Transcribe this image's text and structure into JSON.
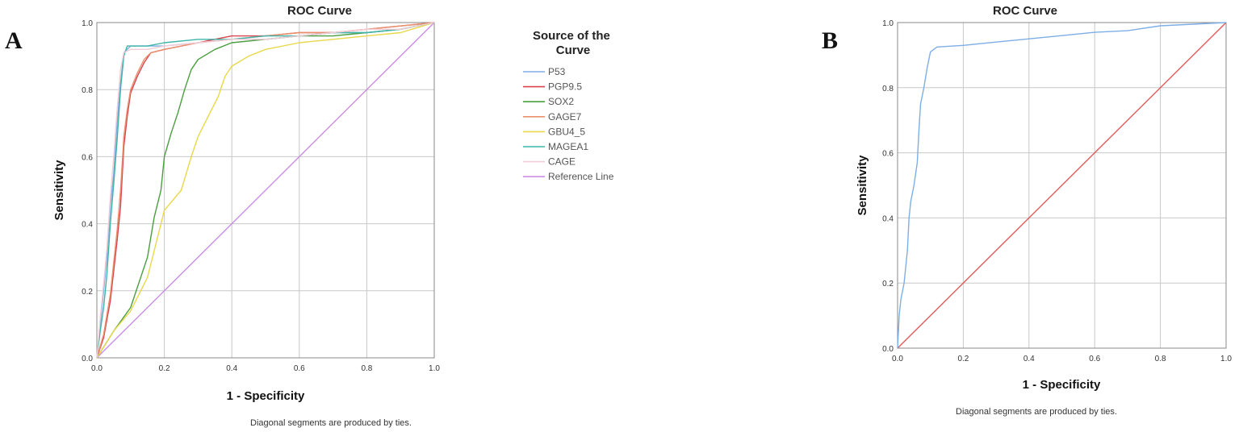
{
  "chart_data": [
    {
      "type": "line",
      "panel_label": "A",
      "title": "ROC Curve",
      "xlabel": "1 - Specificity",
      "ylabel": "Sensitivity",
      "xlim": [
        0,
        1
      ],
      "ylim": [
        0,
        1
      ],
      "xticks": [
        "0.0",
        "0.2",
        "0.4",
        "0.6",
        "0.8",
        "1.0"
      ],
      "yticks": [
        "0.0",
        "0.2",
        "0.4",
        "0.6",
        "0.8",
        "1.0"
      ],
      "grid": true,
      "legend": {
        "title": "Source of the Curve",
        "placement": "right-outside"
      },
      "footnote": "Diagonal segments are produced by ties.",
      "series": [
        {
          "name": "P53",
          "color": "#7eaee6",
          "x": [
            0,
            0.01,
            0.02,
            0.03,
            0.04,
            0.05,
            0.06,
            0.07,
            0.08,
            0.1,
            0.15,
            0.2,
            0.3,
            0.4,
            0.5,
            0.6,
            0.7,
            0.8,
            0.9,
            1.0
          ],
          "y": [
            0,
            0.1,
            0.2,
            0.3,
            0.45,
            0.55,
            0.7,
            0.82,
            0.91,
            0.93,
            0.93,
            0.93,
            0.94,
            0.95,
            0.95,
            0.96,
            0.97,
            0.97,
            0.98,
            1.0
          ]
        },
        {
          "name": "PGP9.5",
          "color": "#d9434e",
          "x": [
            0,
            0.02,
            0.04,
            0.06,
            0.07,
            0.08,
            0.09,
            0.1,
            0.12,
            0.14,
            0.16,
            0.2,
            0.3,
            0.4,
            0.5,
            0.6,
            0.7,
            0.8,
            0.9,
            1.0
          ],
          "y": [
            0,
            0.06,
            0.17,
            0.35,
            0.45,
            0.63,
            0.72,
            0.79,
            0.84,
            0.88,
            0.91,
            0.92,
            0.94,
            0.96,
            0.96,
            0.97,
            0.97,
            0.98,
            0.99,
            1.0
          ]
        },
        {
          "name": "SOX2",
          "color": "#4a9e3f",
          "x": [
            0,
            0.05,
            0.1,
            0.15,
            0.17,
            0.19,
            0.2,
            0.22,
            0.24,
            0.26,
            0.28,
            0.3,
            0.35,
            0.4,
            0.5,
            0.6,
            0.7,
            0.8,
            0.9,
            1.0
          ],
          "y": [
            0,
            0.08,
            0.15,
            0.3,
            0.42,
            0.5,
            0.6,
            0.67,
            0.73,
            0.8,
            0.86,
            0.89,
            0.92,
            0.94,
            0.95,
            0.96,
            0.96,
            0.97,
            0.98,
            1.0
          ]
        },
        {
          "name": "GAGE7",
          "color": "#e8916c",
          "x": [
            0,
            0.02,
            0.04,
            0.06,
            0.07,
            0.08,
            0.09,
            0.1,
            0.12,
            0.14,
            0.16,
            0.2,
            0.3,
            0.4,
            0.5,
            0.6,
            0.7,
            0.8,
            0.9,
            1.0
          ],
          "y": [
            0,
            0.07,
            0.19,
            0.38,
            0.5,
            0.66,
            0.74,
            0.8,
            0.85,
            0.89,
            0.91,
            0.92,
            0.94,
            0.95,
            0.96,
            0.97,
            0.97,
            0.98,
            0.99,
            1.0
          ]
        },
        {
          "name": "GBU4_5",
          "color": "#e8d84a",
          "x": [
            0,
            0.05,
            0.1,
            0.15,
            0.2,
            0.25,
            0.28,
            0.3,
            0.33,
            0.36,
            0.38,
            0.4,
            0.45,
            0.5,
            0.6,
            0.7,
            0.8,
            0.9,
            1.0
          ],
          "y": [
            0,
            0.08,
            0.14,
            0.24,
            0.44,
            0.5,
            0.6,
            0.66,
            0.72,
            0.78,
            0.84,
            0.87,
            0.9,
            0.92,
            0.94,
            0.95,
            0.96,
            0.97,
            1.0
          ]
        },
        {
          "name": "MAGEA1",
          "color": "#3fb5a8",
          "x": [
            0,
            0.01,
            0.02,
            0.03,
            0.04,
            0.05,
            0.06,
            0.07,
            0.08,
            0.09,
            0.15,
            0.2,
            0.3,
            0.4,
            0.5,
            0.6,
            0.7,
            0.8,
            0.9,
            1.0
          ],
          "y": [
            0,
            0.08,
            0.15,
            0.25,
            0.4,
            0.52,
            0.65,
            0.8,
            0.9,
            0.93,
            0.93,
            0.94,
            0.95,
            0.95,
            0.96,
            0.96,
            0.97,
            0.97,
            0.98,
            1.0
          ]
        },
        {
          "name": "CAGE",
          "color": "#f3cdd6",
          "x": [
            0,
            0.01,
            0.02,
            0.03,
            0.04,
            0.05,
            0.06,
            0.07,
            0.08,
            0.1,
            0.15,
            0.2,
            0.3,
            0.4,
            0.5,
            0.6,
            0.7,
            0.8,
            0.9,
            1.0
          ],
          "y": [
            0,
            0.12,
            0.22,
            0.33,
            0.48,
            0.6,
            0.74,
            0.86,
            0.91,
            0.92,
            0.92,
            0.93,
            0.94,
            0.95,
            0.95,
            0.96,
            0.97,
            0.98,
            0.98,
            1.0
          ]
        },
        {
          "name": "Reference Line",
          "color": "#cc8ee6",
          "x": [
            0,
            1
          ],
          "y": [
            0,
            1
          ]
        }
      ]
    },
    {
      "type": "line",
      "panel_label": "B",
      "title": "ROC Curve",
      "xlabel": "1 - Specificity",
      "ylabel": "Sensitivity",
      "xlim": [
        0,
        1
      ],
      "ylim": [
        0,
        1
      ],
      "xticks": [
        "0.0",
        "0.2",
        "0.4",
        "0.6",
        "0.8",
        "1.0"
      ],
      "yticks": [
        "0.0",
        "0.2",
        "0.4",
        "0.6",
        "0.8",
        "1.0"
      ],
      "grid": true,
      "footnote": "Diagonal segments are produced by ties.",
      "series": [
        {
          "color": "#7eaee6",
          "x": [
            0,
            0.005,
            0.01,
            0.02,
            0.03,
            0.035,
            0.04,
            0.05,
            0.06,
            0.065,
            0.07,
            0.08,
            0.09,
            0.1,
            0.12,
            0.2,
            0.3,
            0.4,
            0.5,
            0.6,
            0.7,
            0.8,
            0.9,
            1.0
          ],
          "y": [
            0,
            0.1,
            0.15,
            0.2,
            0.3,
            0.4,
            0.45,
            0.5,
            0.57,
            0.67,
            0.75,
            0.8,
            0.86,
            0.91,
            0.925,
            0.93,
            0.94,
            0.95,
            0.96,
            0.97,
            0.975,
            0.99,
            0.995,
            1.0
          ]
        },
        {
          "color": "#e05c5c",
          "x": [
            0,
            1
          ],
          "y": [
            0,
            1
          ]
        }
      ]
    }
  ]
}
